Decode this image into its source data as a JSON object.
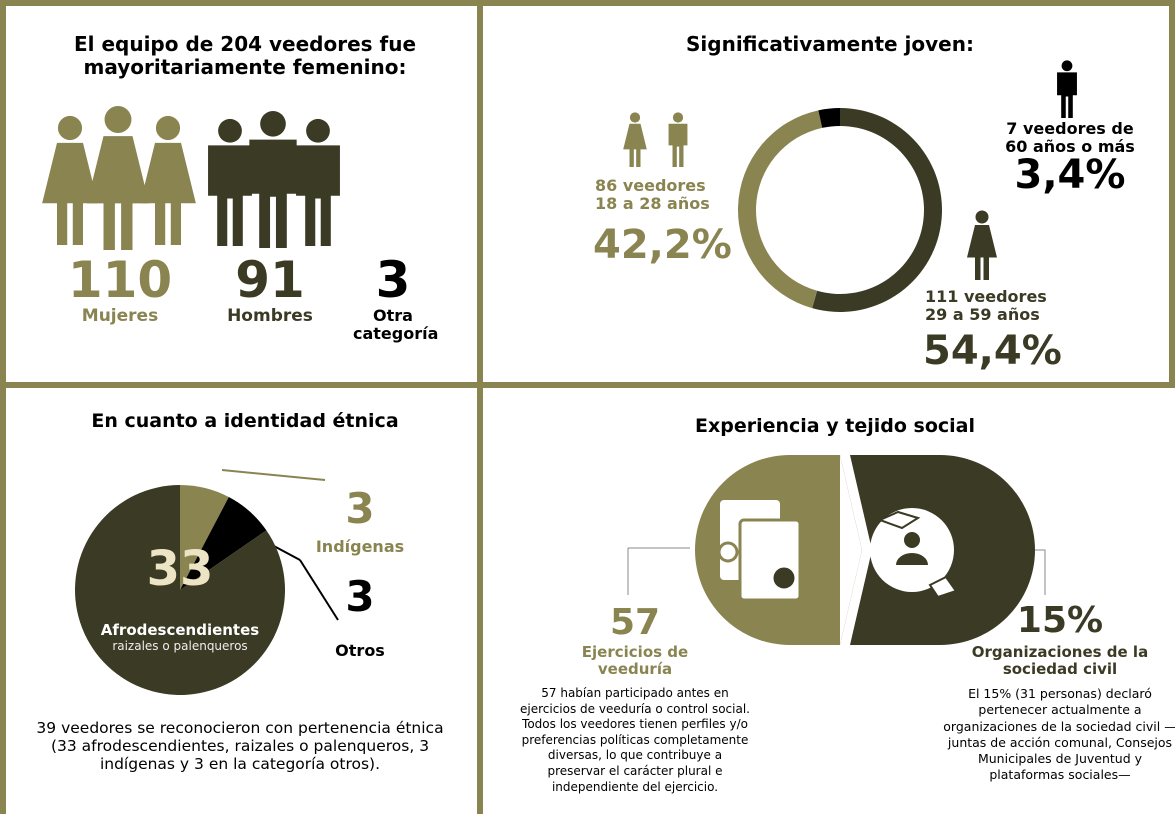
{
  "gender": {
    "title": "El equipo de 204 veedores fue mayoritariamente femenino:",
    "groups": [
      {
        "value": 110,
        "label": "Mujeres"
      },
      {
        "value": 91,
        "label": "Hombres"
      },
      {
        "value": 3,
        "label": "Otra categoría"
      }
    ]
  },
  "chart_data": [
    {
      "type": "donut",
      "title": "Significativamente joven:",
      "categories": [
        "111 veedores 29 a 59 años",
        "86 veedores 18 a 28 años",
        "7 veedores de 60 años o más"
      ],
      "values": [
        54.4,
        42.2,
        3.4
      ],
      "value_labels": [
        "54,4%",
        "42,2%",
        "3,4%"
      ],
      "colors": [
        "#3b3a24",
        "#8a8451",
        "#000000"
      ]
    },
    {
      "type": "pie",
      "title": "En cuanto a identidad étnica",
      "categories": [
        "Indígenas",
        "Otros",
        "Afrodescendientes"
      ],
      "values": [
        3,
        3,
        33
      ],
      "colors": [
        "#8a8451",
        "#000000",
        "#3b3a24"
      ],
      "annotation": "raizales o palenqueros"
    }
  ],
  "ethnic_note": "39 veedores se reconocieron con pertenencia étnica (33 afrodescendientes, raizales o palenqueros, 3 indígenas y 3 en la categoría otros).",
  "experience": {
    "title": "Experiencia y tejido social",
    "items": [
      {
        "value": "57",
        "label": "Ejercicios de veeduría",
        "text": "57 habían participado antes en ejercicios de veeduría o control social. Todos los veedores tienen perfiles y/o preferencias políticas completamente diversas, lo que contribuye a preservar el carácter plural e independiente del ejercicio."
      },
      {
        "value": "15%",
        "label": "Organizaciones de la sociedad civil",
        "text": "El 15% (31 personas) declaró pertenecer actualmente a organizaciones de la sociedad civil —juntas de acción comunal, Consejos Municipales de Juventud y plataformas sociales—"
      }
    ]
  }
}
